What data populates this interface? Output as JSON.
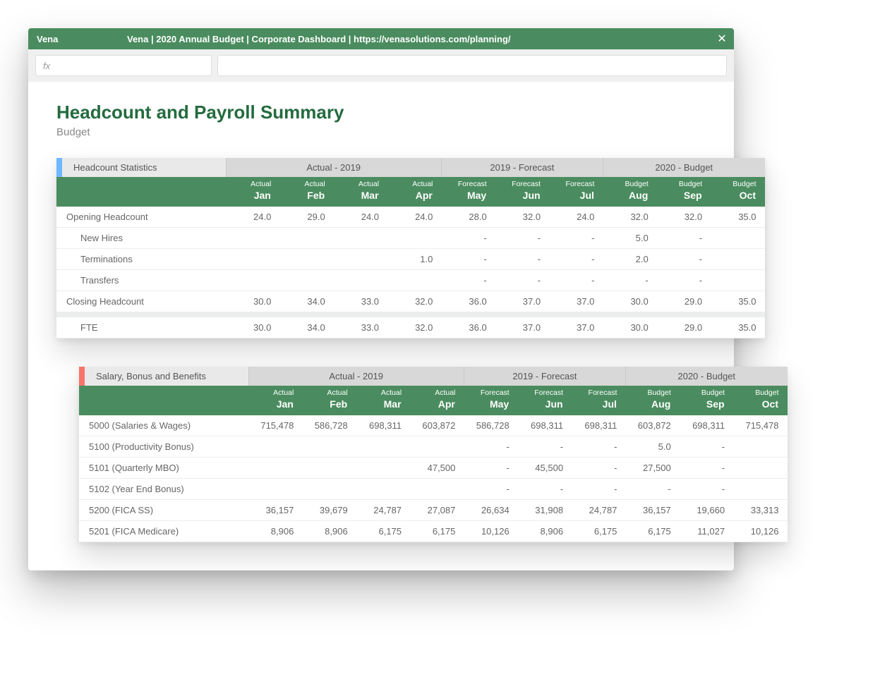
{
  "colors": {
    "brand_green": "#4a8c5f",
    "title_green": "#246b3e",
    "accent_blue": "#6fb7ff",
    "accent_red": "#f7746a",
    "section_grey": "#d8d8d8",
    "section_label_grey": "#e9e9e9",
    "text_muted": "#666666"
  },
  "titlebar": {
    "app_name": "Vena",
    "title": "Vena | 2020 Annual Budget | Corporate Dashboard | https://venasolutions.com/planning/",
    "close_glyph": "✕"
  },
  "formula_bar": {
    "fx_label": "fx",
    "value": ""
  },
  "page": {
    "title": "Headcount and Payroll Summary",
    "subtitle": "Budget"
  },
  "period_groups": [
    {
      "label": "Actual - 2019",
      "span": 4
    },
    {
      "label": "2019 - Forecast",
      "span": 3
    },
    {
      "label": "2020 - Budget",
      "span": 3
    }
  ],
  "columns": [
    {
      "top": "Actual",
      "month": "Jan"
    },
    {
      "top": "Actual",
      "month": "Feb"
    },
    {
      "top": "Actual",
      "month": "Mar"
    },
    {
      "top": "Actual",
      "month": "Apr"
    },
    {
      "top": "Forecast",
      "month": "May"
    },
    {
      "top": "Forecast",
      "month": "Jun"
    },
    {
      "top": "Forecast",
      "month": "Jul"
    },
    {
      "top": "Budget",
      "month": "Aug"
    },
    {
      "top": "Budget",
      "month": "Sep"
    },
    {
      "top": "Budget",
      "month": "Oct"
    }
  ],
  "table1": {
    "section_label": "Headcount Statistics",
    "rows": [
      {
        "label": "Opening Headcount",
        "indent": false,
        "vals": [
          "24.0",
          "29.0",
          "24.0",
          "24.0",
          "28.0",
          "32.0",
          "24.0",
          "32.0",
          "32.0",
          "35.0"
        ]
      },
      {
        "label": "New Hires",
        "indent": true,
        "vals": [
          "",
          "",
          "",
          "",
          "-",
          "-",
          "-",
          "5.0",
          "-",
          ""
        ]
      },
      {
        "label": "Terminations",
        "indent": true,
        "vals": [
          "",
          "",
          "",
          "1.0",
          "-",
          "-",
          "-",
          "2.0",
          "-",
          ""
        ]
      },
      {
        "label": "Transfers",
        "indent": true,
        "vals": [
          "",
          "",
          "",
          "",
          "-",
          "-",
          "-",
          "-",
          "-",
          ""
        ]
      },
      {
        "label": "Closing Headcount",
        "indent": false,
        "vals": [
          "30.0",
          "34.0",
          "33.0",
          "32.0",
          "36.0",
          "37.0",
          "37.0",
          "30.0",
          "29.0",
          "35.0"
        ]
      },
      {
        "label": "FTE",
        "indent": true,
        "gap": true,
        "vals": [
          "30.0",
          "34.0",
          "33.0",
          "32.0",
          "36.0",
          "37.0",
          "37.0",
          "30.0",
          "29.0",
          "35.0"
        ]
      }
    ]
  },
  "table2": {
    "section_label": "Salary, Bonus and Benefits",
    "rows": [
      {
        "label": "5000 (Salaries & Wages)",
        "vals": [
          "715,478",
          "586,728",
          "698,311",
          "603,872",
          "586,728",
          "698,311",
          "698,311",
          "603,872",
          "698,311",
          "715,478"
        ]
      },
      {
        "label": "5100 (Productivity Bonus)",
        "vals": [
          "",
          "",
          "",
          "",
          "-",
          "-",
          "-",
          "5.0",
          "-",
          ""
        ]
      },
      {
        "label": "5101 (Quarterly MBO)",
        "vals": [
          "",
          "",
          "",
          "47,500",
          "-",
          "45,500",
          "-",
          "27,500",
          "-",
          ""
        ]
      },
      {
        "label": "5102 (Year End Bonus)",
        "vals": [
          "",
          "",
          "",
          "",
          "-",
          "-",
          "-",
          "-",
          "-",
          ""
        ]
      },
      {
        "label": "5200 (FICA SS)",
        "vals": [
          "36,157",
          "39,679",
          "24,787",
          "27,087",
          "26,634",
          "31,908",
          "24,787",
          "36,157",
          "19,660",
          "33,313"
        ]
      },
      {
        "label": "5201 (FICA Medicare)",
        "vals": [
          "8,906",
          "8,906",
          "6,175",
          "6,175",
          "10,126",
          "8,906",
          "6,175",
          "6,175",
          "11,027",
          "10,126"
        ]
      }
    ]
  }
}
